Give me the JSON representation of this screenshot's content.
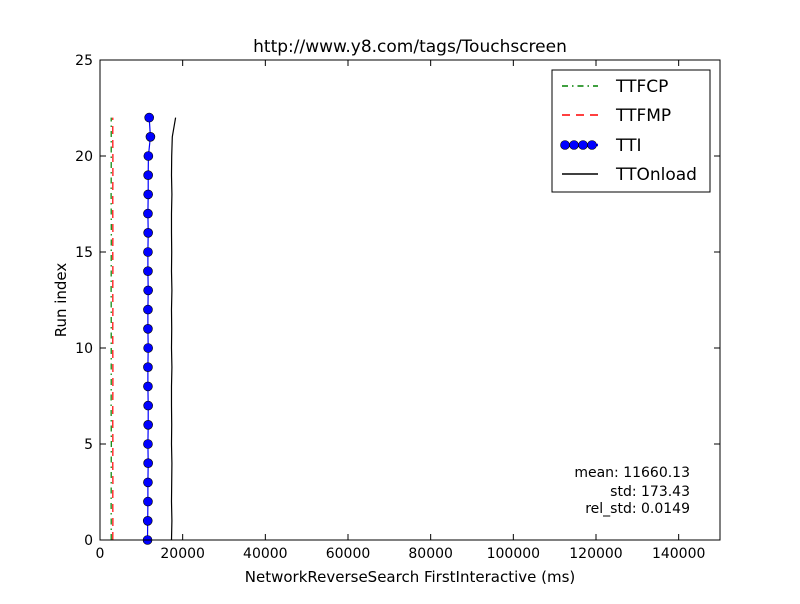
{
  "chart_data": {
    "type": "line",
    "title": "http://www.y8.com/tags/Touchscreen",
    "xlabel": "NetworkReverseSearch FirstInteractive (ms)",
    "ylabel": "Run index",
    "xlim": [
      0,
      150000
    ],
    "ylim": [
      0,
      25
    ],
    "xticks": [
      0,
      20000,
      40000,
      60000,
      80000,
      100000,
      120000,
      140000
    ],
    "yticks": [
      0,
      5,
      10,
      15,
      20,
      25
    ],
    "grid": false,
    "legend_position": "top-right",
    "series": [
      {
        "name": "TTFCP",
        "style": "dash-dot",
        "color": "#008000",
        "marker": "none",
        "x": [
          2700,
          2720,
          2690,
          2710,
          2700,
          2730,
          2700,
          2690,
          2720,
          2710,
          2700,
          2700,
          2720,
          2690,
          2710,
          2700,
          2730,
          2700,
          2690,
          2720,
          2710,
          2700,
          2700
        ],
        "y": [
          0,
          1,
          2,
          3,
          4,
          5,
          6,
          7,
          8,
          9,
          10,
          11,
          12,
          13,
          14,
          15,
          16,
          17,
          18,
          19,
          20,
          21,
          22
        ]
      },
      {
        "name": "TTFMP",
        "style": "dashed",
        "color": "#ff0000",
        "marker": "none",
        "x": [
          3100,
          3120,
          3090,
          3110,
          3100,
          3130,
          3100,
          3090,
          3120,
          3110,
          3100,
          3100,
          3120,
          3090,
          3110,
          3100,
          3130,
          3100,
          3090,
          3120,
          3110,
          3100,
          3100
        ],
        "y": [
          0,
          1,
          2,
          3,
          4,
          5,
          6,
          7,
          8,
          9,
          10,
          11,
          12,
          13,
          14,
          15,
          16,
          17,
          18,
          19,
          20,
          21,
          22
        ]
      },
      {
        "name": "TTI",
        "style": "solid",
        "color": "#0000ff",
        "marker": "circle",
        "x": [
          11500,
          11550,
          11600,
          11600,
          11650,
          11600,
          11650,
          11650,
          11600,
          11600,
          11650,
          11600,
          11600,
          11650,
          11600,
          11600,
          11650,
          11600,
          11650,
          11650,
          11700,
          12200,
          11900
        ],
        "y": [
          0,
          1,
          2,
          3,
          4,
          5,
          6,
          7,
          8,
          9,
          10,
          11,
          12,
          13,
          14,
          15,
          16,
          17,
          18,
          19,
          20,
          21,
          22
        ]
      },
      {
        "name": "TTOnload",
        "style": "solid",
        "color": "#000000",
        "marker": "none",
        "x": [
          17300,
          17400,
          17300,
          17350,
          17400,
          17300,
          17350,
          17300,
          17300,
          17400,
          17300,
          17350,
          17300,
          17400,
          17300,
          17350,
          17300,
          17300,
          17400,
          17300,
          17350,
          17500,
          18300
        ],
        "y": [
          0,
          1,
          2,
          3,
          4,
          5,
          6,
          7,
          8,
          9,
          10,
          11,
          12,
          13,
          14,
          15,
          16,
          17,
          18,
          19,
          20,
          21,
          22
        ]
      }
    ],
    "annotations": [
      "mean: 11660.13",
      "std: 173.43",
      "rel_std: 0.0149"
    ]
  }
}
